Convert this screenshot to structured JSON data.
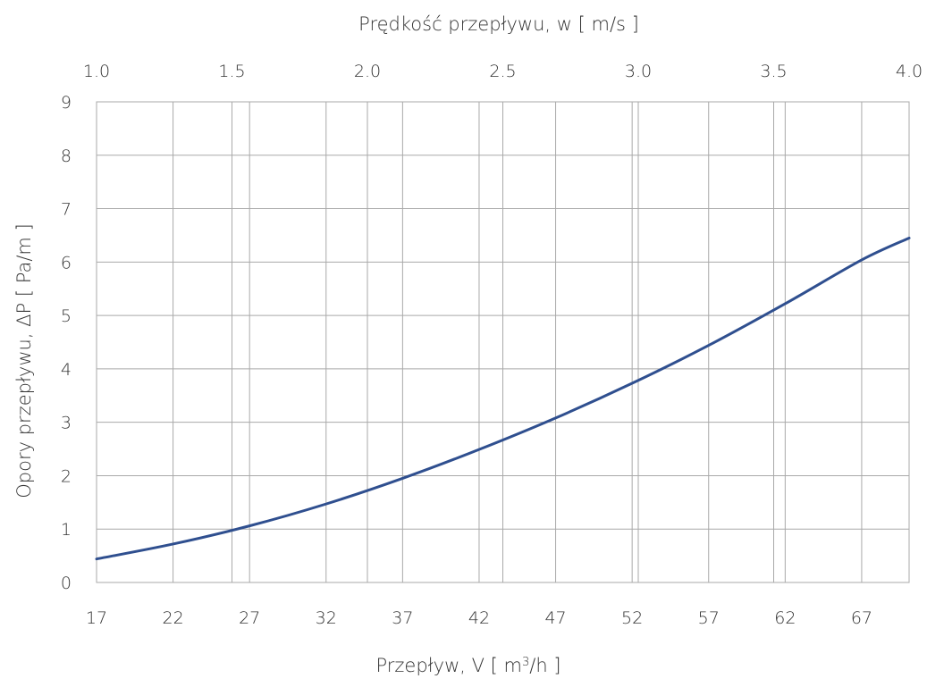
{
  "chart_data": {
    "type": "line",
    "title": "",
    "xlabel": "Przepływ, V [ m",
    "xlabel_sup": "3",
    "xlabel_tail": "/h ]",
    "x2label": "Prędkość przepływu, w [ m/s ]",
    "ylabel": "Opory przepływu, ΔP [ Pa/m ]",
    "xlim": [
      17,
      70.1
    ],
    "ylim": [
      0,
      9
    ],
    "x2lim": [
      1.0,
      4.0
    ],
    "x_ticks": [
      "17",
      "22",
      "27",
      "32",
      "37",
      "42",
      "47",
      "52",
      "57",
      "62",
      "67"
    ],
    "x_tick_values": [
      17,
      22,
      27,
      32,
      37,
      42,
      47,
      52,
      57,
      62,
      67
    ],
    "y_ticks": [
      "0",
      "1",
      "2",
      "3",
      "4",
      "5",
      "6",
      "7",
      "8",
      "9"
    ],
    "y_tick_values": [
      0,
      1,
      2,
      3,
      4,
      5,
      6,
      7,
      8,
      9
    ],
    "x2_ticks": [
      "1.0",
      "1.5",
      "2.0",
      "2.5",
      "3.0",
      "3.5",
      "4.0"
    ],
    "x2_tick_values": [
      1.0,
      1.5,
      2.0,
      2.5,
      3.0,
      3.5,
      4.0
    ],
    "grid": true,
    "series": [
      {
        "color": "#2f4f8f",
        "x": [
          17,
          22,
          27,
          32,
          37,
          42,
          47,
          52,
          57,
          62,
          67,
          70.1
        ],
        "y": [
          0.44,
          0.72,
          1.06,
          1.47,
          1.95,
          2.49,
          3.08,
          3.73,
          4.44,
          5.22,
          6.04,
          6.45
        ]
      }
    ]
  }
}
